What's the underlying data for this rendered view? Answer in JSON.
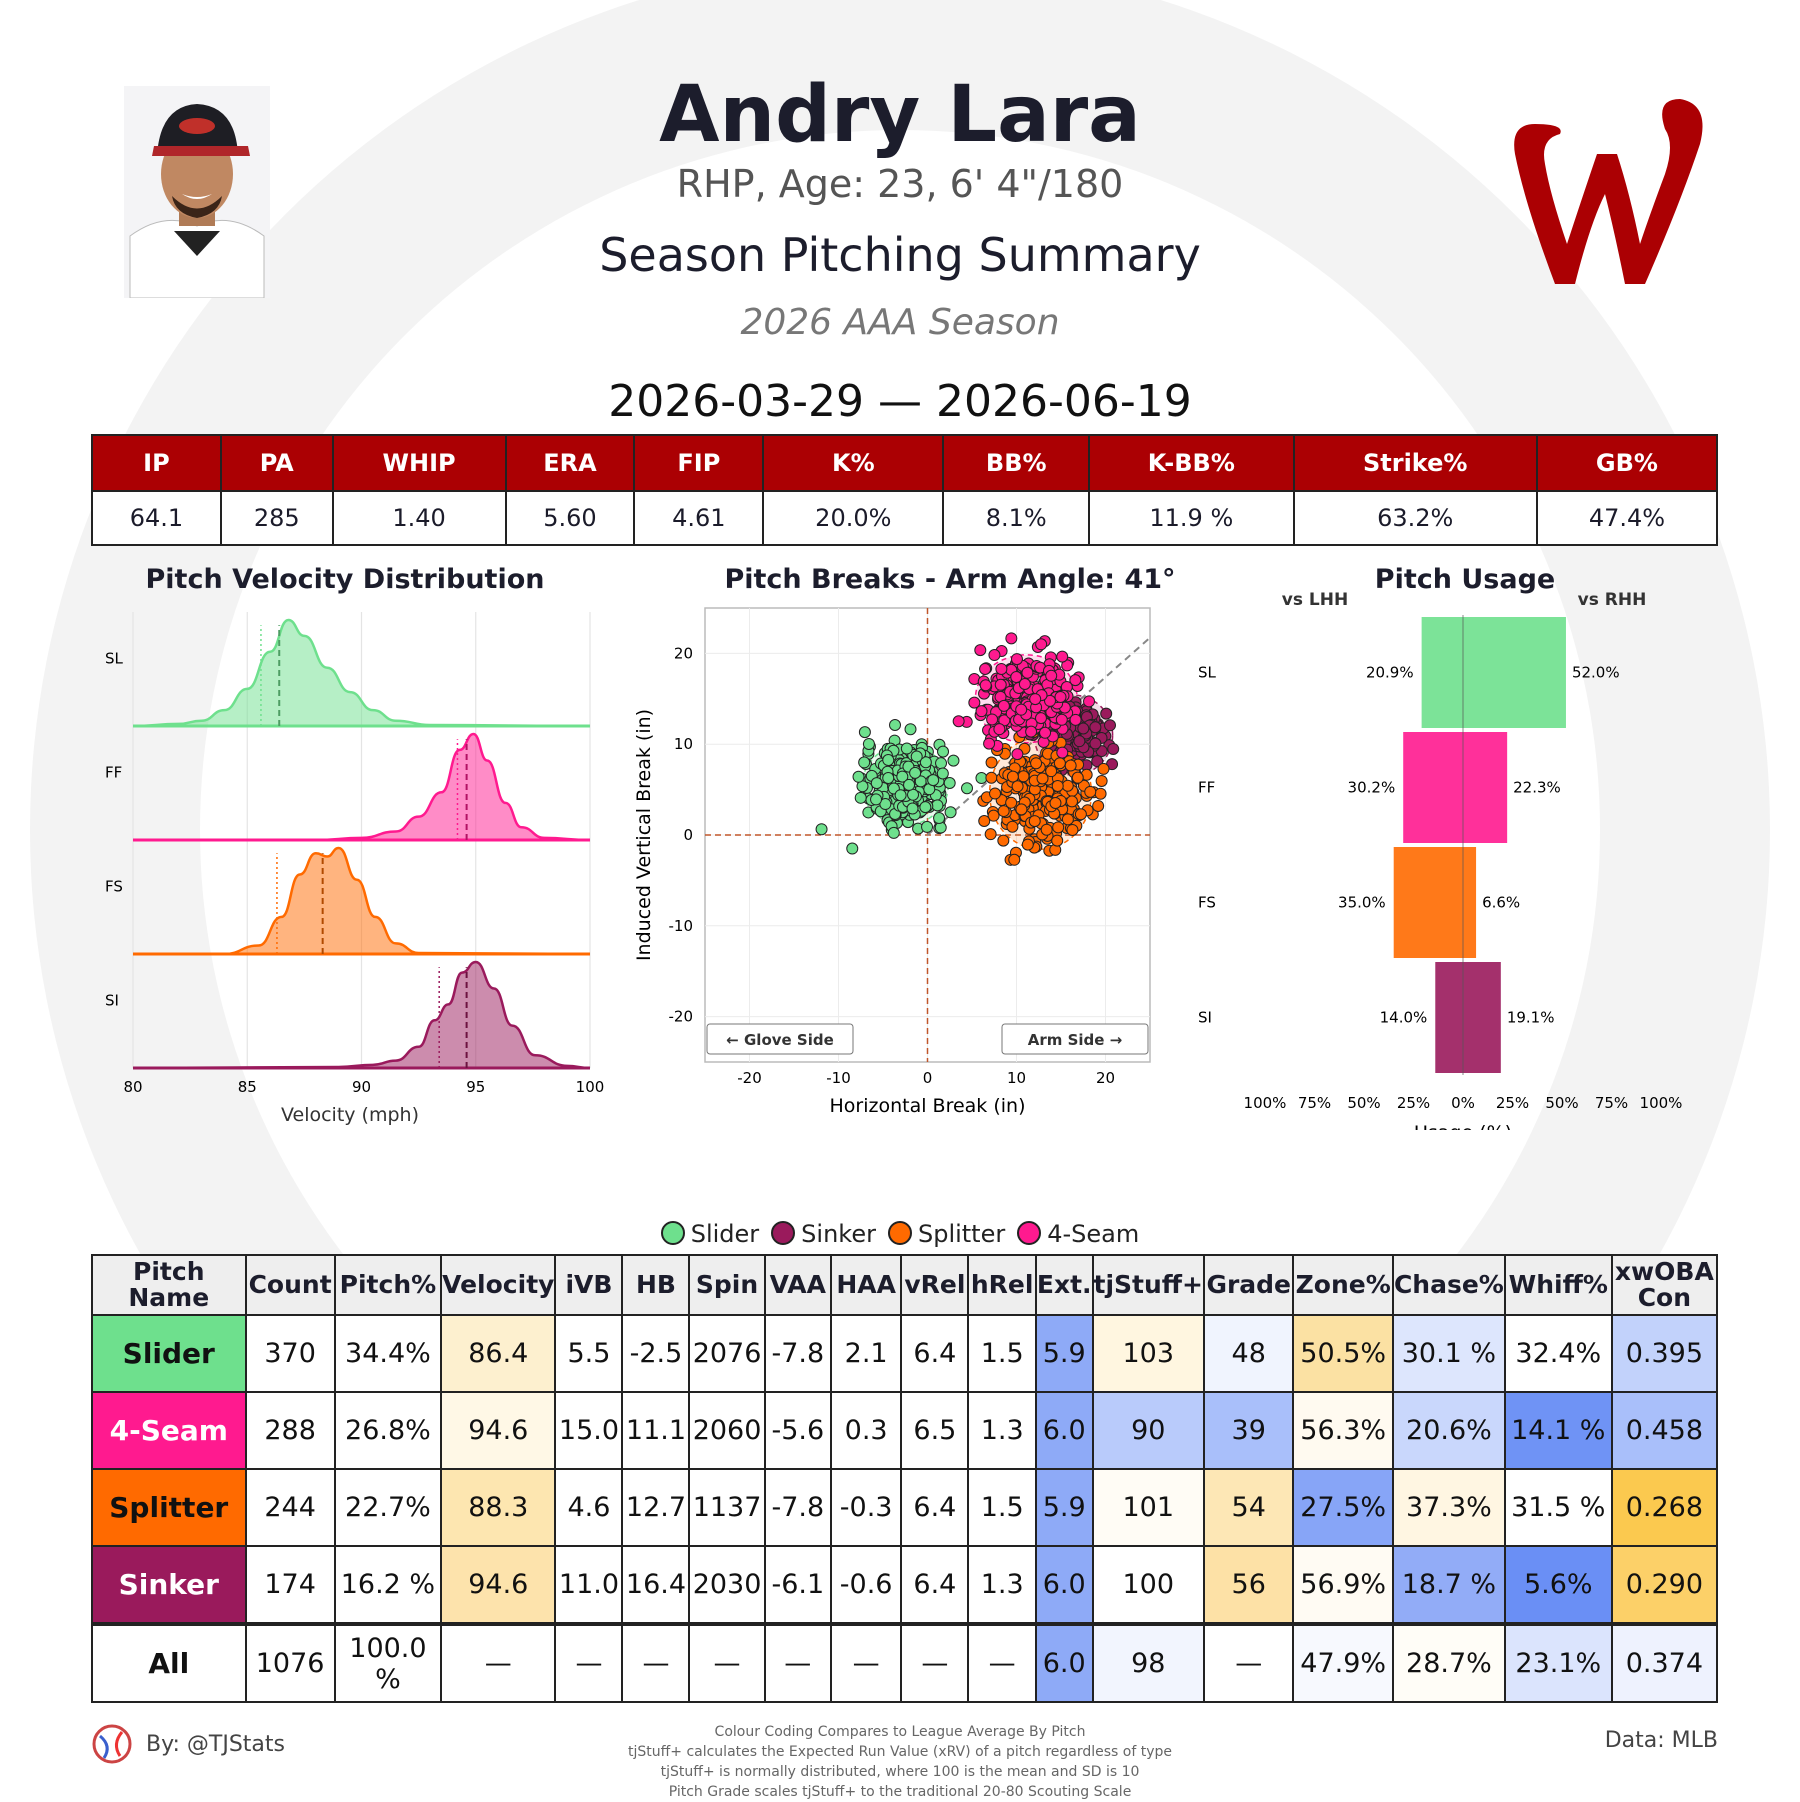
{
  "header": {
    "name": "Andry Lara",
    "bio": "RHP, Age: 23, 6' 4\"/180",
    "title": "Season Pitching Summary",
    "season": "2026 AAA Season",
    "date_range": "2026-03-29 — 2026-06-19"
  },
  "stat_headers": [
    "IP",
    "PA",
    "WHIP",
    "ERA",
    "FIP",
    "K%",
    "BB%",
    "K-BB%",
    "Strike%",
    "GB%"
  ],
  "stat_values": [
    "64.1",
    "285",
    "1.40",
    "5.60",
    "4.61",
    "20.0%",
    "8.1%",
    "11.9 %",
    "63.2%",
    "47.4%"
  ],
  "colors": {
    "Slider": "#6ee08d",
    "4-Seam": "#ff1a8f",
    "Splitter": "#ff6a00",
    "Sinker": "#9a1a5c",
    "header_red": "#ab0003"
  },
  "chart_data": [
    {
      "type": "area",
      "title": "Pitch Velocity Distribution",
      "xlabel": "Velocity (mph)",
      "xlim": [
        80,
        100
      ],
      "xticks": [
        80,
        85,
        90,
        95,
        100
      ],
      "rows": [
        {
          "label": "SL",
          "pitch": "Slider",
          "mean": 86.4,
          "league_mean": 85.6,
          "x": [
            80,
            82,
            83,
            84,
            85,
            86,
            86.8,
            87.5,
            88.5,
            89.5,
            90.5,
            91.5,
            93,
            100
          ],
          "y": [
            0,
            0.02,
            0.05,
            0.15,
            0.35,
            0.7,
            1.0,
            0.85,
            0.55,
            0.32,
            0.15,
            0.05,
            0.01,
            0
          ]
        },
        {
          "label": "FF",
          "pitch": "4-Seam",
          "mean": 94.6,
          "league_mean": 94.2,
          "x": [
            80,
            88,
            90,
            91.5,
            92.5,
            93.5,
            94.3,
            94.9,
            95.5,
            96.3,
            97,
            98,
            100
          ],
          "y": [
            0,
            0,
            0.02,
            0.08,
            0.22,
            0.45,
            0.85,
            1.0,
            0.75,
            0.35,
            0.12,
            0.02,
            0
          ]
        },
        {
          "label": "FS",
          "pitch": "Splitter",
          "mean": 88.3,
          "league_mean": 86.3,
          "x": [
            80,
            84,
            85.5,
            86.5,
            87.3,
            88,
            88.5,
            89,
            89.8,
            90.6,
            91.5,
            92.5,
            100
          ],
          "y": [
            0,
            0,
            0.08,
            0.35,
            0.75,
            0.95,
            0.92,
            1.0,
            0.7,
            0.35,
            0.1,
            0.01,
            0
          ]
        },
        {
          "label": "SI",
          "pitch": "Sinker",
          "mean": 94.6,
          "league_mean": 93.4,
          "x": [
            80,
            89,
            90.5,
            91.5,
            92.5,
            93.2,
            93.8,
            94.4,
            95,
            95.8,
            96.6,
            97.6,
            99,
            100
          ],
          "y": [
            0,
            0.01,
            0.03,
            0.07,
            0.2,
            0.45,
            0.6,
            0.9,
            1.0,
            0.75,
            0.4,
            0.12,
            0.02,
            0
          ]
        }
      ]
    },
    {
      "type": "scatter",
      "title": "Pitch Breaks - Arm Angle: 41°",
      "xlabel": "Horizontal Break (in)",
      "ylabel": "Induced Vertical Break (in)",
      "xlim": [
        -25,
        25
      ],
      "ylim": [
        -25,
        25
      ],
      "xticks": [
        -20,
        -10,
        0,
        10,
        20
      ],
      "yticks": [
        -20,
        -10,
        0,
        10,
        20
      ],
      "arm_angle_deg": 41,
      "annotations": [
        "← Glove Side",
        "Arm Side →"
      ],
      "series": [
        {
          "name": "Slider",
          "count": 370,
          "center": [
            -2.5,
            5.5
          ],
          "spread": [
            2.2,
            2.0
          ]
        },
        {
          "name": "Sinker",
          "count": 174,
          "center": [
            16.4,
            11.0
          ],
          "spread": [
            2.0,
            2.0
          ]
        },
        {
          "name": "Splitter",
          "count": 244,
          "center": [
            12.7,
            4.6
          ],
          "spread": [
            2.6,
            2.8
          ]
        },
        {
          "name": "4-Seam",
          "count": 288,
          "center": [
            11.1,
            15.0
          ],
          "spread": [
            2.6,
            2.2
          ]
        }
      ]
    },
    {
      "type": "bar",
      "title": "Pitch Usage",
      "xlabel": "Usage (%)",
      "left_label": "vs LHH",
      "right_label": "vs RHH",
      "xticks": [
        "100%",
        "75%",
        "50%",
        "25%",
        "0%",
        "25%",
        "50%",
        "75%",
        "100%"
      ],
      "categories": [
        "SL",
        "FF",
        "FS",
        "SI"
      ],
      "series": [
        {
          "name": "vs LHH",
          "values": [
            20.9,
            30.2,
            35.0,
            14.0
          ]
        },
        {
          "name": "vs RHH",
          "values": [
            52.0,
            22.3,
            6.6,
            19.1
          ]
        }
      ]
    }
  ],
  "legend": [
    "Slider",
    "Sinker",
    "Splitter",
    "4-Seam"
  ],
  "pitch_table": {
    "headers": [
      "Pitch Name",
      "Count",
      "Pitch%",
      "Velocity",
      "iVB",
      "HB",
      "Spin",
      "VAA",
      "HAA",
      "vRel",
      "hRel",
      "Ext.",
      "tjStuff+",
      "Grade",
      "Zone%",
      "Chase%",
      "Whiff%",
      "xwOBA Con"
    ],
    "rows": [
      {
        "name": "Slider",
        "cells": [
          "370",
          "34.4%",
          "86.4",
          "5.5",
          "-2.5",
          "2076",
          "-7.8",
          "2.1",
          "6.4",
          "1.5",
          "5.9",
          "103",
          "48",
          "50.5%",
          "30.1 %",
          "32.4%",
          "0.395"
        ]
      },
      {
        "name": "4-Seam",
        "cells": [
          "288",
          "26.8%",
          "94.6",
          "15.0",
          "11.1",
          "2060",
          "-5.6",
          "0.3",
          "6.5",
          "1.3",
          "6.0",
          "90",
          "39",
          "56.3%",
          "20.6%",
          "14.1 %",
          "0.458"
        ]
      },
      {
        "name": "Splitter",
        "cells": [
          "244",
          "22.7%",
          "88.3",
          "4.6",
          "12.7",
          "1137",
          "-7.8",
          "-0.3",
          "6.4",
          "1.5",
          "5.9",
          "101",
          "54",
          "27.5%",
          "37.3%",
          "31.5 %",
          "0.268"
        ]
      },
      {
        "name": "Sinker",
        "cells": [
          "174",
          "16.2 %",
          "94.6",
          "11.0",
          "16.4",
          "2030",
          "-6.1",
          "-0.6",
          "6.4",
          "1.3",
          "6.0",
          "100",
          "56",
          "56.9%",
          "18.7 %",
          "5.6%",
          "0.290"
        ]
      },
      {
        "name": "All",
        "cells": [
          "1076",
          "100.0 %",
          "—",
          "—",
          "—",
          "—",
          "—",
          "—",
          "—",
          "—",
          "6.0",
          "98",
          "—",
          "47.9%",
          "28.7%",
          "23.1%",
          "0.374"
        ]
      }
    ],
    "cell_colors": [
      [
        "#fff",
        "#fff",
        "#fdf0cf",
        "#fff",
        "#fff",
        "#fff",
        "#fff",
        "#fff",
        "#fff",
        "#fff",
        "#8eaaf7",
        "#fff6e0",
        "#f0f4fe",
        "#fbe1a3",
        "#dde6fd",
        "#fff",
        "#c2d2fb"
      ],
      [
        "#fff",
        "#fff",
        "#fff8e6",
        "#fff",
        "#fff",
        "#fff",
        "#fff",
        "#fff",
        "#fff",
        "#fff",
        "#8eaaf7",
        "#b9cbfb",
        "#a9bffa",
        "#fffaf0",
        "#c9d7fc",
        "#6f93f5",
        "#a9bffa"
      ],
      [
        "#fff",
        "#fff",
        "#fde6b0",
        "#fff",
        "#fff",
        "#fff",
        "#fff",
        "#fff",
        "#fff",
        "#fff",
        "#8eaaf7",
        "#fffcf5",
        "#fde7b5",
        "#87a5f7",
        "#fff6e2",
        "#fff",
        "#fbc94f"
      ],
      [
        "#fff",
        "#fff",
        "#fde3ac",
        "#fff",
        "#fff",
        "#fff",
        "#fff",
        "#fff",
        "#fff",
        "#fff",
        "#8eaaf7",
        "#fff",
        "#fde1a6",
        "#fffbf3",
        "#92acf7",
        "#6a8ff5",
        "#fcd068"
      ],
      [
        "#fff",
        "#fff",
        "#fff",
        "#fff",
        "#fff",
        "#fff",
        "#fff",
        "#fff",
        "#fff",
        "#fff",
        "#8eaaf7",
        "#f2f5fe",
        "#fff",
        "#f7f9fe",
        "#fffdf7",
        "#dbe4fd",
        "#eef2fe"
      ]
    ]
  },
  "footer": {
    "by": "By: @TJStats",
    "data_source": "Data: MLB",
    "notes": [
      "Colour Coding Compares to League Average By Pitch",
      "tjStuff+ calculates the Expected Run Value (xRV) of a pitch regardless of type",
      "tjStuff+ is normally distributed, where 100 is the mean and SD is 10",
      "Pitch Grade scales tjStuff+ to the traditional 20-80 Scouting Scale"
    ]
  }
}
